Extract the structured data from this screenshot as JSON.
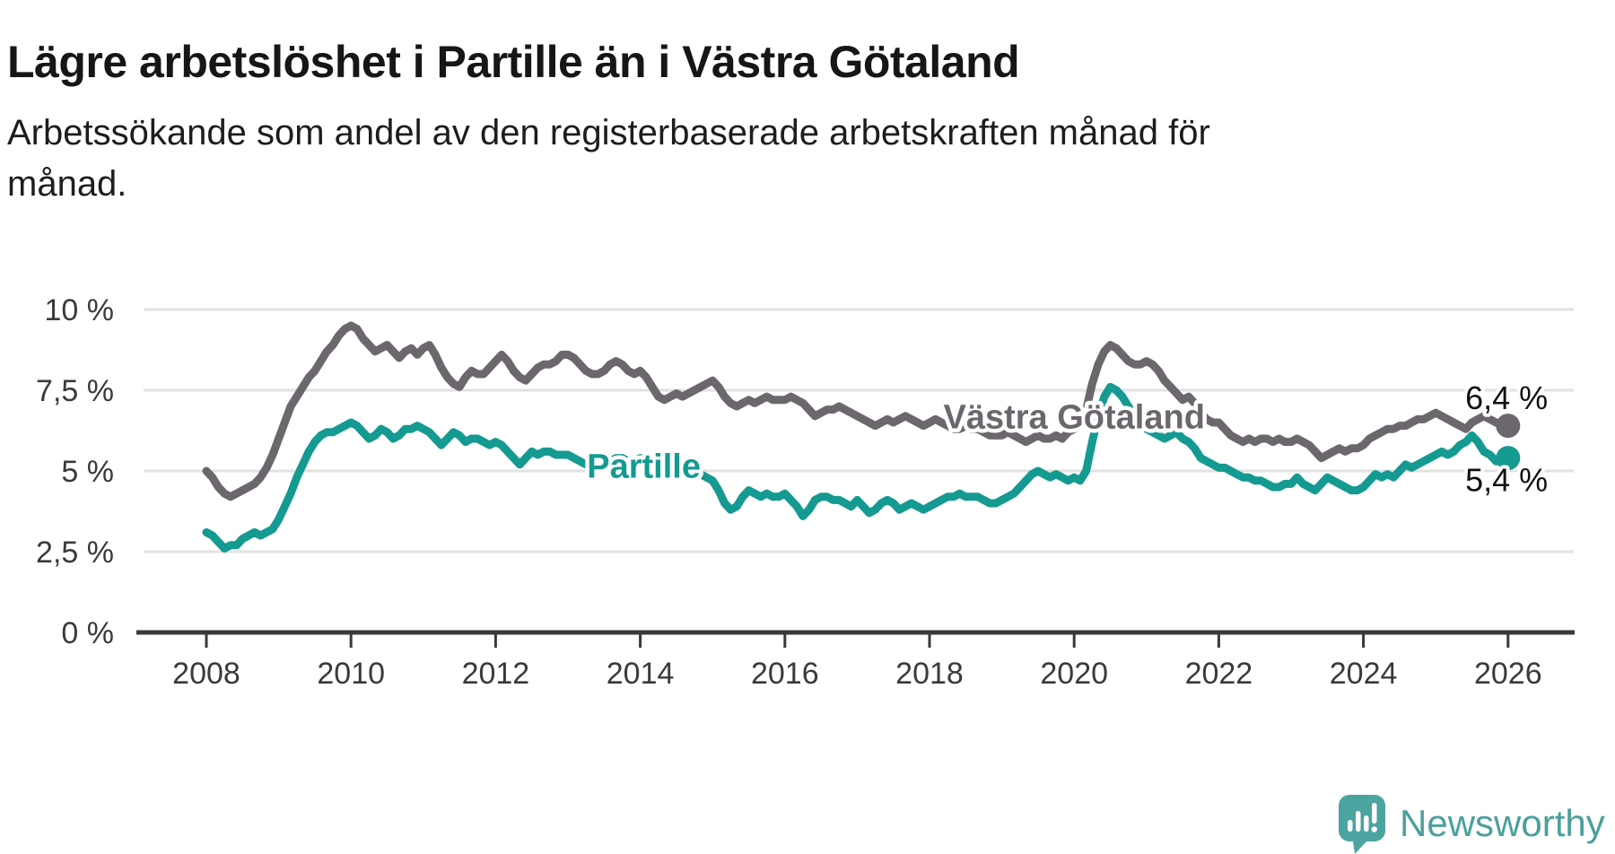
{
  "title": "Lägre arbetslöshet i Partille än i Västra Götaland",
  "subtitle": {
    "line1": "Arbetssökande som andel av den registerbaserade arbetskraften månad för",
    "line2": "månad."
  },
  "footer": {
    "brand": "Newsworthy"
  },
  "colors": {
    "partille": "#149a91",
    "vastra_gotaland": "#6b676d",
    "gridline": "#e2e2e2",
    "axis": "#3a383b",
    "tick_text": "#3a3a3a",
    "end_label_text": "#111111",
    "logo": "#4ba49f"
  },
  "chart_data": {
    "type": "line",
    "title": "Lägre arbetslöshet i Partille än i Västra Götaland",
    "subtitle": "Arbetssökande som andel av den registerbaserade arbetskraften månad för månad.",
    "x_start_year": 2008,
    "points_per_year": 12,
    "xlim": [
      2007.13,
      2026.9
    ],
    "ylim": [
      0,
      10.5
    ],
    "grid": true,
    "x_ticks": [
      2008,
      2010,
      2012,
      2014,
      2016,
      2018,
      2020,
      2022,
      2024,
      2026
    ],
    "y_ticks": [
      {
        "value": 0,
        "label": "0 %"
      },
      {
        "value": 2.5,
        "label": "2,5 %"
      },
      {
        "value": 5,
        "label": "5 %"
      },
      {
        "value": 7.5,
        "label": "7,5 %"
      },
      {
        "value": 10,
        "label": "10 %"
      }
    ],
    "series": [
      {
        "name": "Västra Götaland",
        "color": "#6b676d",
        "end_label": "6,4 %",
        "values": [
          5.0,
          4.8,
          4.5,
          4.3,
          4.2,
          4.3,
          4.4,
          4.5,
          4.6,
          4.8,
          5.1,
          5.5,
          6.0,
          6.5,
          7.0,
          7.3,
          7.6,
          7.9,
          8.1,
          8.4,
          8.7,
          8.9,
          9.2,
          9.4,
          9.5,
          9.4,
          9.1,
          8.9,
          8.7,
          8.8,
          8.9,
          8.7,
          8.5,
          8.7,
          8.8,
          8.6,
          8.8,
          8.9,
          8.6,
          8.2,
          7.9,
          7.7,
          7.6,
          7.9,
          8.1,
          8.0,
          8.0,
          8.2,
          8.4,
          8.6,
          8.4,
          8.1,
          7.9,
          7.8,
          8.0,
          8.2,
          8.3,
          8.3,
          8.4,
          8.6,
          8.6,
          8.5,
          8.3,
          8.1,
          8.0,
          8.0,
          8.1,
          8.3,
          8.4,
          8.3,
          8.1,
          8.0,
          8.1,
          7.9,
          7.6,
          7.3,
          7.2,
          7.3,
          7.4,
          7.3,
          7.4,
          7.5,
          7.6,
          7.7,
          7.8,
          7.6,
          7.3,
          7.1,
          7.0,
          7.1,
          7.2,
          7.1,
          7.2,
          7.3,
          7.2,
          7.2,
          7.2,
          7.3,
          7.2,
          7.1,
          6.9,
          6.7,
          6.8,
          6.9,
          6.9,
          7.0,
          6.9,
          6.8,
          6.7,
          6.6,
          6.5,
          6.4,
          6.5,
          6.6,
          6.5,
          6.6,
          6.7,
          6.6,
          6.5,
          6.4,
          6.5,
          6.6,
          6.5,
          6.4,
          6.3,
          6.3,
          6.4,
          6.3,
          6.3,
          6.2,
          6.1,
          6.1,
          6.1,
          6.2,
          6.1,
          6.0,
          5.9,
          6.0,
          6.1,
          6.0,
          6.0,
          6.1,
          6.0,
          6.2,
          6.3,
          6.4,
          6.9,
          7.7,
          8.3,
          8.7,
          8.9,
          8.8,
          8.6,
          8.4,
          8.3,
          8.3,
          8.4,
          8.3,
          8.1,
          7.8,
          7.6,
          7.4,
          7.2,
          7.3,
          7.1,
          6.8,
          6.6,
          6.5,
          6.5,
          6.3,
          6.1,
          6.0,
          5.9,
          6.0,
          5.9,
          6.0,
          6.0,
          5.9,
          6.0,
          5.9,
          5.9,
          6.0,
          5.9,
          5.8,
          5.6,
          5.4,
          5.5,
          5.6,
          5.7,
          5.6,
          5.7,
          5.7,
          5.8,
          6.0,
          6.1,
          6.2,
          6.3,
          6.3,
          6.4,
          6.4,
          6.5,
          6.6,
          6.6,
          6.7,
          6.8,
          6.7,
          6.6,
          6.5,
          6.4,
          6.3,
          6.5,
          6.6,
          6.7,
          6.6,
          6.5,
          6.4,
          6.4
        ]
      },
      {
        "name": "Partille",
        "color": "#149a91",
        "end_label": "5,4 %",
        "values": [
          3.1,
          3.0,
          2.8,
          2.6,
          2.7,
          2.7,
          2.9,
          3.0,
          3.1,
          3.0,
          3.1,
          3.2,
          3.5,
          3.9,
          4.3,
          4.8,
          5.2,
          5.6,
          5.9,
          6.1,
          6.2,
          6.2,
          6.3,
          6.4,
          6.5,
          6.4,
          6.2,
          6.0,
          6.1,
          6.3,
          6.2,
          6.0,
          6.1,
          6.3,
          6.3,
          6.4,
          6.3,
          6.2,
          6.0,
          5.8,
          6.0,
          6.2,
          6.1,
          5.9,
          6.0,
          6.0,
          5.9,
          5.8,
          5.9,
          5.8,
          5.6,
          5.4,
          5.2,
          5.4,
          5.6,
          5.5,
          5.6,
          5.6,
          5.5,
          5.5,
          5.5,
          5.4,
          5.3,
          5.2,
          5.2,
          5.3,
          5.4,
          5.3,
          5.4,
          5.4,
          5.3,
          5.3,
          5.4,
          5.3,
          5.2,
          5.1,
          5.0,
          5.0,
          5.1,
          5.0,
          4.9,
          5.0,
          4.9,
          4.8,
          4.7,
          4.4,
          4.0,
          3.8,
          3.9,
          4.2,
          4.4,
          4.3,
          4.2,
          4.3,
          4.2,
          4.2,
          4.3,
          4.1,
          3.9,
          3.6,
          3.8,
          4.1,
          4.2,
          4.2,
          4.1,
          4.1,
          4.0,
          3.9,
          4.1,
          3.9,
          3.7,
          3.8,
          4.0,
          4.1,
          4.0,
          3.8,
          3.9,
          4.0,
          3.9,
          3.8,
          3.9,
          4.0,
          4.1,
          4.2,
          4.2,
          4.3,
          4.2,
          4.2,
          4.2,
          4.1,
          4.0,
          4.0,
          4.1,
          4.2,
          4.3,
          4.5,
          4.7,
          4.9,
          5.0,
          4.9,
          4.8,
          4.9,
          4.8,
          4.7,
          4.8,
          4.7,
          5.0,
          5.9,
          6.7,
          7.3,
          7.6,
          7.5,
          7.3,
          7.0,
          6.7,
          6.4,
          6.3,
          6.2,
          6.1,
          6.0,
          6.1,
          6.2,
          6.0,
          5.9,
          5.7,
          5.4,
          5.3,
          5.2,
          5.1,
          5.1,
          5.0,
          4.9,
          4.8,
          4.8,
          4.7,
          4.7,
          4.6,
          4.5,
          4.5,
          4.6,
          4.6,
          4.8,
          4.6,
          4.5,
          4.4,
          4.6,
          4.8,
          4.7,
          4.6,
          4.5,
          4.4,
          4.4,
          4.5,
          4.7,
          4.9,
          4.8,
          4.9,
          4.8,
          5.0,
          5.2,
          5.1,
          5.2,
          5.3,
          5.4,
          5.5,
          5.6,
          5.5,
          5.6,
          5.8,
          5.9,
          6.1,
          5.9,
          5.6,
          5.5,
          5.3,
          5.3,
          5.4
        ]
      }
    ],
    "series_labels": [
      {
        "text": "Västra Götaland",
        "x": 2020.0,
        "y": 6.68,
        "color": "#6b676d"
      },
      {
        "text": "Partille",
        "x": 2014.05,
        "y": 5.15,
        "color": "#149a91"
      }
    ],
    "end_labels": [
      {
        "text": "6,4 %",
        "x": 2026.55,
        "y": 7.28
      },
      {
        "text": "5,4 %",
        "x": 2026.55,
        "y": 4.73
      }
    ],
    "legend_position": "inline-labels"
  }
}
